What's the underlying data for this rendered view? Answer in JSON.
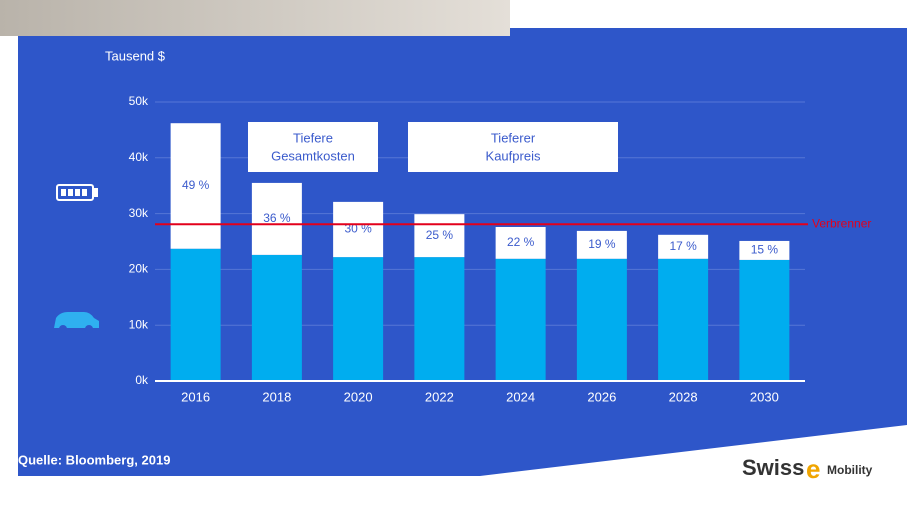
{
  "chart_data": {
    "type": "stacked-bar",
    "ylabel": "Tausend $",
    "categories": [
      "2016",
      "2018",
      "2020",
      "2022",
      "2024",
      "2026",
      "2028",
      "2030"
    ],
    "series": [
      {
        "color": "#00adef",
        "values": [
          23.7,
          22.6,
          22.2,
          22.2,
          21.9,
          21.9,
          21.9,
          21.7
        ]
      },
      {
        "color": "#ffffff",
        "values": [
          22.5,
          12.9,
          9.9,
          7.7,
          5.7,
          5.0,
          4.3,
          3.4
        ]
      }
    ],
    "share_labels": [
      "49 %",
      "36 %",
      "30 %",
      "25 %",
      "22 %",
      "19 %",
      "17 %",
      "15 %"
    ],
    "ylim": [
      0,
      50
    ],
    "yticks": [
      {
        "value": 0,
        "label": "0k"
      },
      {
        "value": 10,
        "label": "10k"
      },
      {
        "value": 20,
        "label": "20k"
      },
      {
        "value": 30,
        "label": "30k"
      },
      {
        "value": 40,
        "label": "40k"
      },
      {
        "value": 50,
        "label": "50k"
      }
    ],
    "grid": true,
    "reference_line": {
      "label": "Verbrenner",
      "value": 28.1,
      "color": "#e3001b"
    },
    "annotations": [
      {
        "lines": [
          "Tiefere",
          "Gesamtkosten"
        ]
      },
      {
        "lines": [
          "Tieferer",
          "Kaufpreis"
        ]
      }
    ],
    "source": "Quelle: Bloomberg, 2019"
  },
  "logo": {
    "parts": [
      "Swiss",
      "e",
      "Mobility"
    ]
  }
}
